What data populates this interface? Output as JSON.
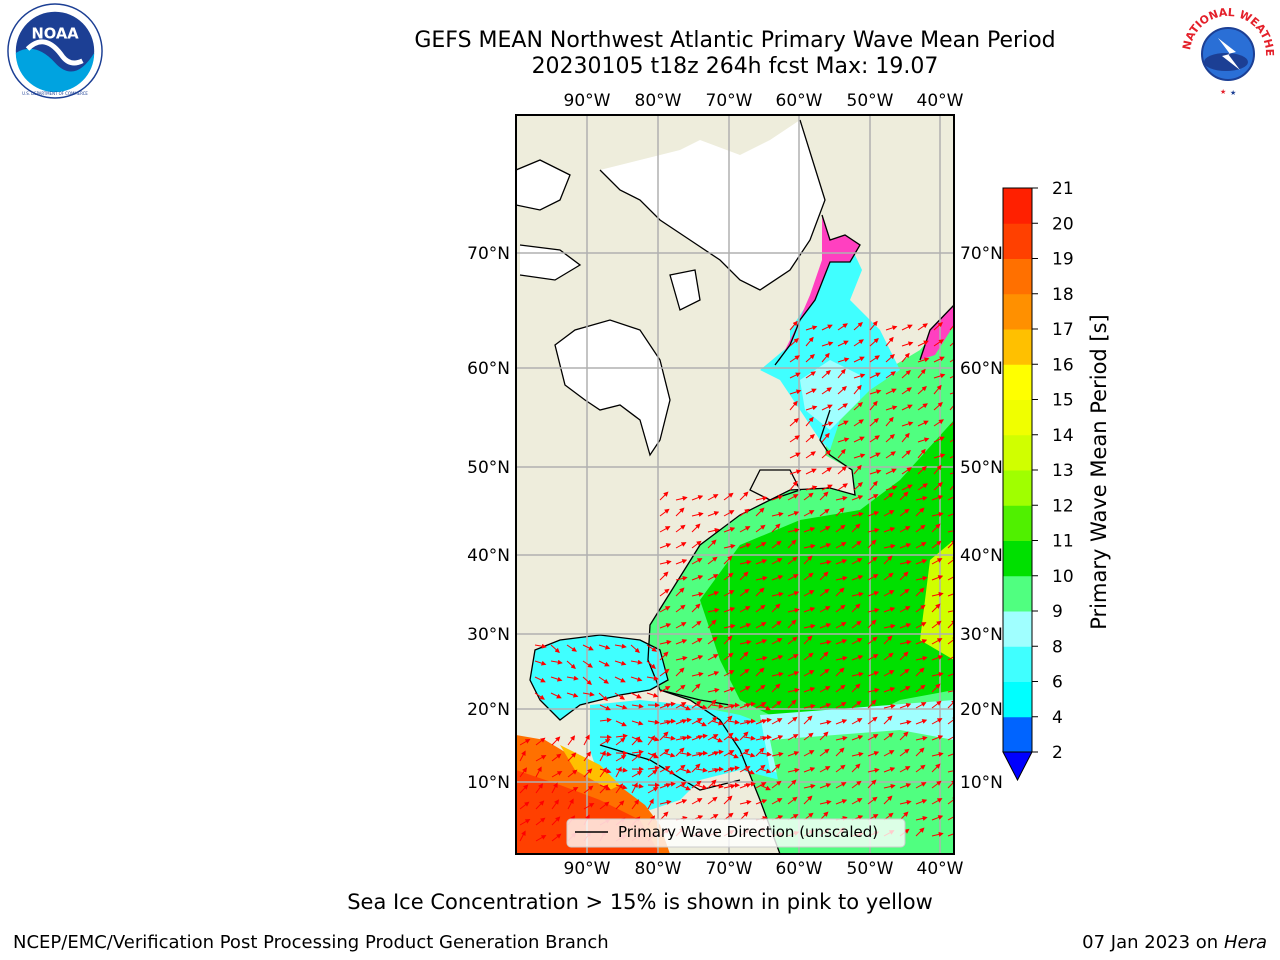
{
  "title": {
    "line1": "GEFS MEAN Northwest Atlantic Primary Wave Mean Period",
    "line2": "20230105 t18z 264h fcst   Max: 19.07"
  },
  "logos": {
    "left": "noaa-logo",
    "left_text": "NOAA",
    "left_ring_text": "NATIONAL OCEANIC AND ATMOSPHERIC ADMINISTRATION · U.S. DEPARTMENT OF COMMERCE",
    "right": "nws-logo",
    "right_ring_text": "NATIONAL WEATHER SERVICE"
  },
  "map": {
    "lon_labels": [
      "90°W",
      "80°W",
      "70°W",
      "60°W",
      "50°W",
      "40°W"
    ],
    "lat_labels": [
      "70°N",
      "60°N",
      "50°N",
      "40°N",
      "30°N",
      "20°N",
      "10°N"
    ],
    "legend_label": "Primary Wave Direction (unscaled)",
    "colors": {
      "land": "#eeeddc",
      "ice_land": "#ffffff",
      "grid": "#b0b0b0",
      "arrow": "#ff0000"
    }
  },
  "colorbar": {
    "label": "Primary Wave Mean Period [s]",
    "ticks": [
      "2",
      "4",
      "6",
      "8",
      "9",
      "10",
      "11",
      "12",
      "13",
      "14",
      "15",
      "16",
      "17",
      "18",
      "19",
      "20",
      "21"
    ],
    "colors": [
      "#0064ff",
      "#00ffff",
      "#40ffff",
      "#a0ffff",
      "#50ff80",
      "#00e000",
      "#50f000",
      "#a0ff00",
      "#d0ff00",
      "#f0ff00",
      "#ffff00",
      "#ffc000",
      "#ff9000",
      "#ff7000",
      "#ff4000",
      "#ff2000"
    ],
    "extend_color": "#0000ff"
  },
  "notes": {
    "sea_ice": "Sea Ice Concentration > 15% is shown in pink to yellow",
    "footer_left": "NCEP/EMC/Verification Post Processing Product Generation Branch",
    "footer_date": "07 Jan 2023 on ",
    "footer_host": "Hera"
  }
}
